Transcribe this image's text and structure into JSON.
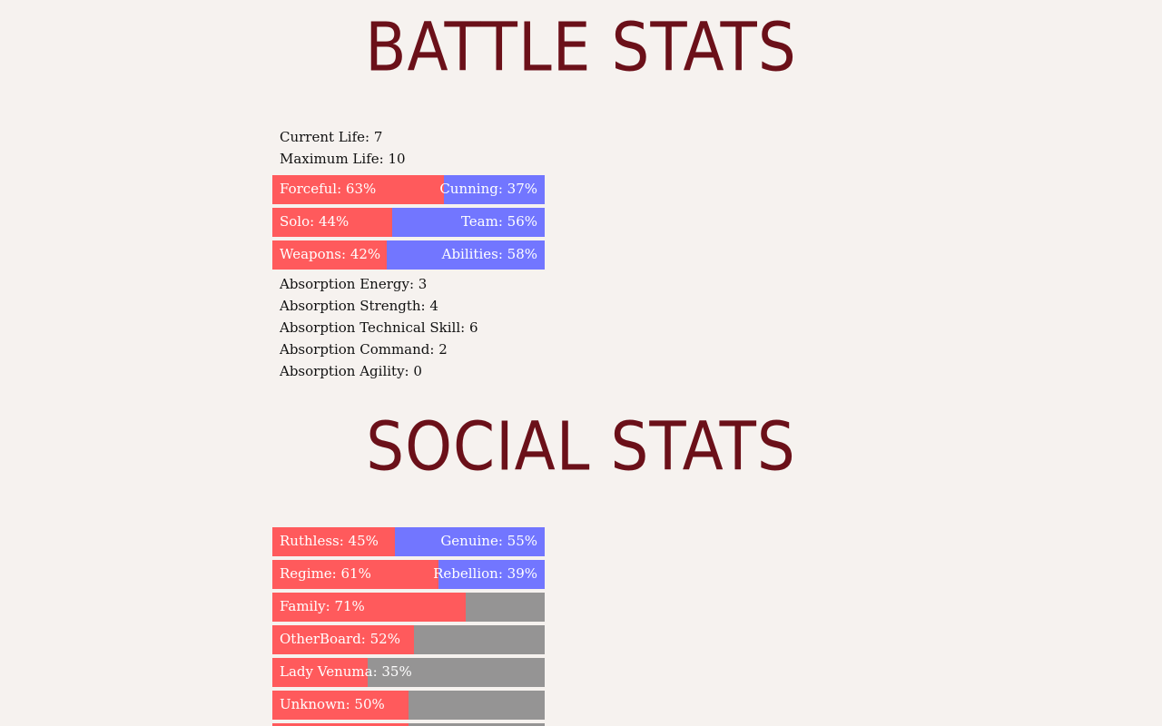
{
  "battle": {
    "heading": "BATTLE STATS",
    "current_life": "Current Life: 7",
    "maximum_life": "Maximum Life: 10",
    "bars": [
      {
        "left_label": "Forceful: 63%",
        "right_label": "Cunning: 37%",
        "percent": 63,
        "right_color": "blue"
      },
      {
        "left_label": "Solo: 44%",
        "right_label": "Team: 56%",
        "percent": 44,
        "right_color": "blue"
      },
      {
        "left_label": "Weapons: 42%",
        "right_label": "Abilities: 58%",
        "percent": 42,
        "right_color": "blue"
      }
    ],
    "absorption": [
      "Absorption Energy: 3",
      "Absorption Strength: 4",
      "Absorption Technical Skill: 6",
      "Absorption Command: 2",
      "Absorption Agility: 0"
    ]
  },
  "social": {
    "heading": "SOCIAL STATS",
    "bars": [
      {
        "left_label": "Ruthless: 45%",
        "right_label": "Genuine: 55%",
        "percent": 45,
        "right_color": "blue"
      },
      {
        "left_label": "Regime: 61%",
        "right_label": "Rebellion: 39%",
        "percent": 61,
        "right_color": "blue"
      },
      {
        "left_label": "Family: 71%",
        "right_label": "",
        "percent": 71,
        "right_color": "gray"
      },
      {
        "left_label": "OtherBoard: 52%",
        "right_label": "",
        "percent": 52,
        "right_color": "gray"
      },
      {
        "left_label": "Lady Venuma: 35%",
        "right_label": "",
        "percent": 35,
        "right_color": "gray"
      },
      {
        "left_label": "Unknown: 50%",
        "right_label": "",
        "percent": 50,
        "right_color": "gray"
      },
      {
        "left_label": "",
        "right_label": "",
        "percent": 50,
        "right_color": "gray"
      }
    ]
  },
  "colors": {
    "heading": "#6b1019",
    "bar_left": "#ff5a5c",
    "bar_right_blue": "#7276ff",
    "bar_right_gray": "#959494",
    "background": "#f6f2ef"
  }
}
